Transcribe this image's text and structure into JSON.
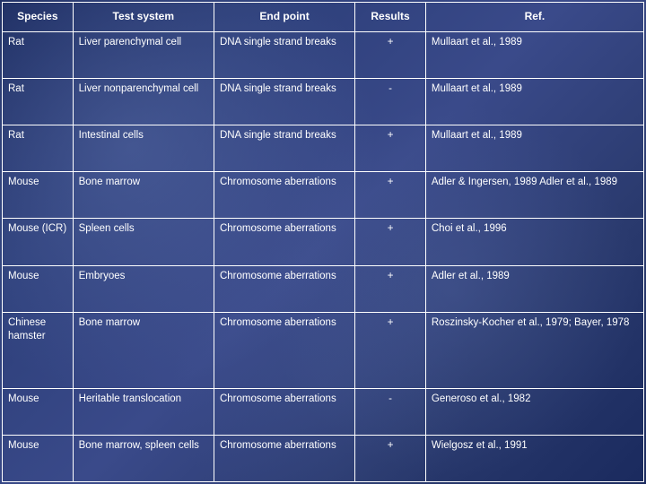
{
  "table": {
    "columns": [
      "Species",
      "Test system",
      "End point",
      "Results",
      "Ref."
    ],
    "column_widths": [
      "11%",
      "22%",
      "22%",
      "11%",
      "34%"
    ],
    "header_fontsize": 12,
    "cell_fontsize": 11.5,
    "border_color": "#ffffff",
    "text_color": "#ffffff",
    "background_gradient": [
      "#1a2a5e",
      "#2d3f7a",
      "#3a4a8a",
      "#2a3a6e",
      "#1a2a5e"
    ],
    "rows": [
      [
        "Rat",
        "Liver parenchymal cell",
        "DNA single strand breaks",
        "+",
        "Mullaart et al., 1989"
      ],
      [
        "Rat",
        "Liver nonparenchymal cell",
        "DNA single strand breaks",
        "-",
        "Mullaart et al., 1989"
      ],
      [
        "Rat",
        "Intestinal cells",
        "DNA single strand breaks",
        "+",
        "Mullaart et al., 1989"
      ],
      [
        "Mouse",
        "Bone marrow",
        "Chromosome aberrations",
        "+",
        "Adler & Ingersen, 1989 Adler et al., 1989"
      ],
      [
        "Mouse (ICR)",
        "Spleen cells",
        "Chromosome aberrations",
        "+",
        "Choi et al., 1996"
      ],
      [
        "Mouse",
        "Embryoes",
        "Chromosome aberrations",
        "+",
        "Adler et al., 1989"
      ],
      [
        "Chinese hamster",
        "Bone marrow",
        "Chromosome aberrations",
        "+",
        "Roszinsky-Kocher et al., 1979; Bayer, 1978"
      ],
      [
        "Mouse",
        "Heritable translocation",
        "Chromosome aberrations",
        "-",
        "Generoso et al., 1982"
      ],
      [
        "Mouse",
        "Bone marrow, spleen cells",
        "Chromosome aberrations",
        "+",
        "Wielgosz et al., 1991"
      ]
    ]
  }
}
